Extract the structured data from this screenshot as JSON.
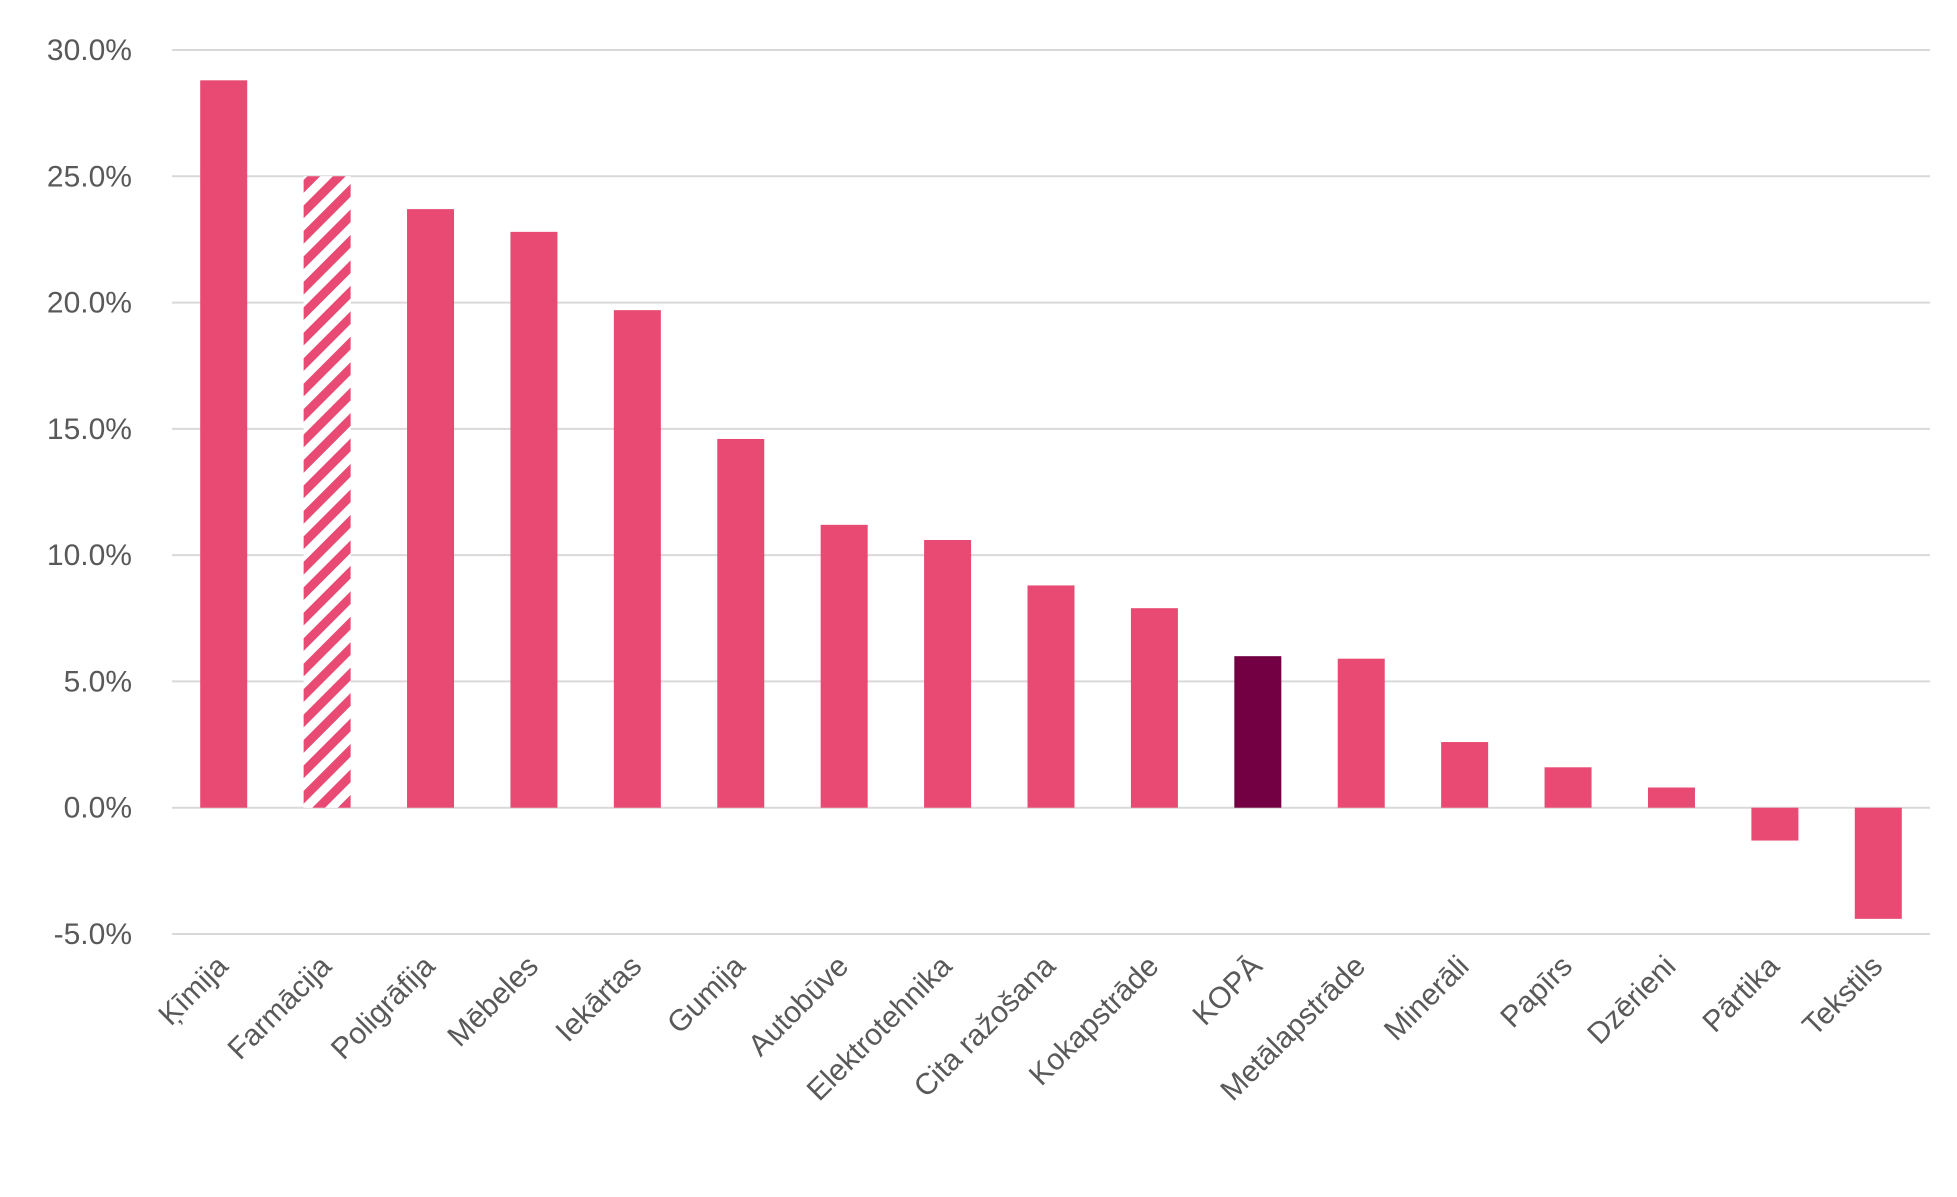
{
  "chart_data": {
    "type": "bar",
    "title": "",
    "xlabel": "",
    "ylabel": "",
    "ylim": [
      -5.0,
      30.0
    ],
    "y_ticks": [
      30.0,
      25.0,
      20.0,
      15.0,
      10.0,
      5.0,
      0.0,
      -5.0
    ],
    "y_tick_labels": [
      "30.0%",
      "25.0%",
      "20.0%",
      "15.0%",
      "10.0%",
      "5.0%",
      "0.0%",
      "-5.0%"
    ],
    "grid": "horizontal",
    "legend": "none",
    "categories": [
      "Ķīmija",
      "Farmācija",
      "Poligrāfija",
      "Mēbeles",
      "Iekārtas",
      "Gumija",
      "Autobūve",
      "Elektrotehnika",
      "Cita ražošana",
      "Kokapstrāde",
      "KOPĀ",
      "Metālapstrāde",
      "Minerāli",
      "Papīrs",
      "Dzērieni",
      "Pārtika",
      "Tekstils"
    ],
    "values": [
      28.8,
      25.0,
      23.7,
      22.8,
      19.7,
      14.6,
      11.2,
      10.6,
      8.8,
      7.9,
      6.0,
      5.9,
      2.6,
      1.6,
      0.8,
      -1.3,
      -4.4
    ],
    "bar_styles": [
      "solid",
      "hatched",
      "solid",
      "solid",
      "solid",
      "solid",
      "solid",
      "solid",
      "solid",
      "solid",
      "highlight",
      "solid",
      "solid",
      "solid",
      "solid",
      "solid",
      "solid"
    ],
    "colors": {
      "bar": "#E84A73",
      "highlight": "#720042",
      "hatch_stripe": "#E84A73",
      "hatch_bg": "#ffffff",
      "grid": "#D9D9D9",
      "text": "#595959"
    }
  }
}
